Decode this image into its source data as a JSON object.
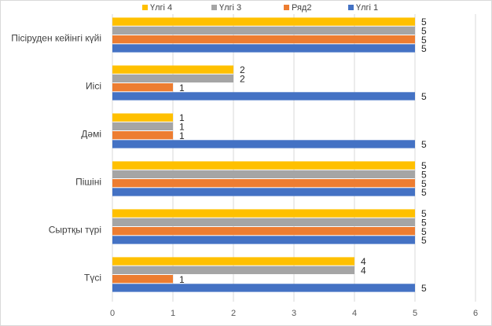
{
  "chart_data": {
    "type": "bar",
    "orientation": "horizontal",
    "categories": [
      "Пісіруден кейінгі күйі",
      "Иісі",
      "Дәмі",
      "Пішіні",
      "Сыртқы түрі",
      "Түсі"
    ],
    "series": [
      {
        "name": "Үлгі 4",
        "color": "#FFC000",
        "values": [
          5,
          2,
          1,
          5,
          5,
          4
        ]
      },
      {
        "name": "Үлгі 3",
        "color": "#A5A5A5",
        "values": [
          5,
          2,
          1,
          5,
          5,
          4
        ]
      },
      {
        "name": "Ряд2",
        "color": "#ED7D31",
        "values": [
          5,
          1,
          1,
          5,
          5,
          1
        ]
      },
      {
        "name": "Үлгі 1",
        "color": "#4472C4",
        "values": [
          5,
          5,
          5,
          5,
          5,
          5
        ]
      }
    ],
    "xlim": [
      0,
      6
    ],
    "xticks": [
      0,
      1,
      2,
      3,
      4,
      5,
      6
    ],
    "grid": true,
    "legend_position": "top",
    "data_labels": true
  }
}
